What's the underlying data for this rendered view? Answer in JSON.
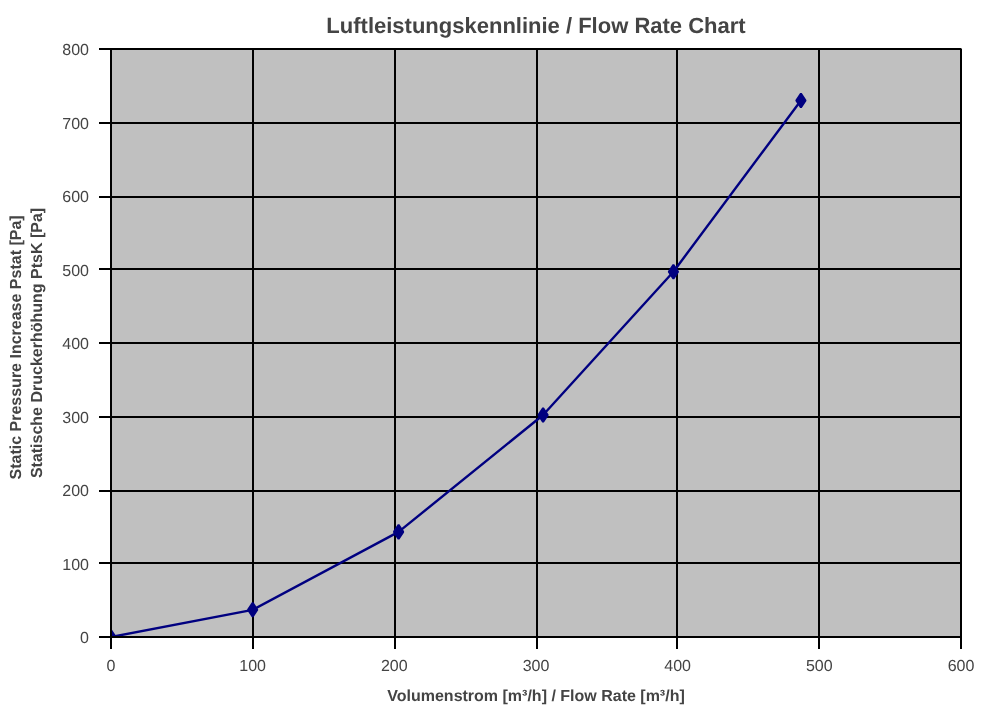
{
  "chart_data": {
    "type": "line",
    "title": "Luftleistungskennlinie / Flow Rate Chart",
    "xlabel": "Volumenstrom [m³/h] / Flow Rate [m³/h]",
    "ylabel": "Static Pressure Increase  Pstat  [Pa]\nStatische Druckerhöhung PtsK [Pa]",
    "x": [
      0,
      100,
      203,
      305,
      397,
      487
    ],
    "series": [
      {
        "color": "#000080",
        "values": [
          0,
          37,
          143,
          302,
          497,
          730
        ]
      }
    ],
    "marker": "diamond",
    "xlim": [
      0,
      600
    ],
    "xticks": [
      0,
      100,
      200,
      300,
      400,
      500,
      600
    ],
    "ylim": [
      0,
      800
    ],
    "yticks": [
      0,
      100,
      200,
      300,
      400,
      500,
      600,
      700,
      800
    ],
    "grid": true,
    "line_style": "solid"
  }
}
